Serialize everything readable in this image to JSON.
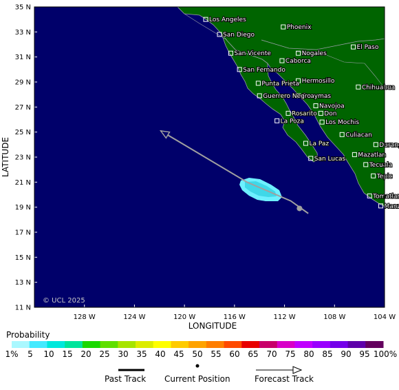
{
  "map": {
    "title": "",
    "xlabel": "LONGITUDE",
    "ylabel": "LATITUDE",
    "lon_range": [
      -132,
      -104
    ],
    "lat_range": [
      11,
      35
    ],
    "lon_ticks": [
      {
        "value": -128,
        "label": "128 W"
      },
      {
        "value": -124,
        "label": "124 W"
      },
      {
        "value": -120,
        "label": "120 W"
      },
      {
        "value": -116,
        "label": "116 W"
      },
      {
        "value": -112,
        "label": "112 W"
      },
      {
        "value": -108,
        "label": "108 W"
      },
      {
        "value": -104,
        "label": "104 W"
      }
    ],
    "lat_ticks": [
      {
        "value": 35,
        "label": "35 N"
      },
      {
        "value": 33,
        "label": "33 N"
      },
      {
        "value": 31,
        "label": "31 N"
      },
      {
        "value": 29,
        "label": "29 N"
      },
      {
        "value": 27,
        "label": "27 N"
      },
      {
        "value": 25,
        "label": "25 N"
      },
      {
        "value": 23,
        "label": "23 N"
      },
      {
        "value": 21,
        "label": "21 N"
      },
      {
        "value": 19,
        "label": "19 N"
      },
      {
        "value": 17,
        "label": "17 N"
      },
      {
        "value": 15,
        "label": "15 N"
      },
      {
        "value": 13,
        "label": "13 N"
      },
      {
        "value": 11,
        "label": "11 N"
      }
    ],
    "copyright": "© UCL 2025",
    "colors": {
      "ocean": "#00006a",
      "land": "#006400",
      "coast": "#9aa0a8",
      "track": "#a0a0a0",
      "probability_low": "#6ef0ff",
      "probability_mid": "#3fd8e8"
    },
    "cities": [
      {
        "name": "Los Angeles",
        "lon": -118.3,
        "lat": 34.0
      },
      {
        "name": "Phoenix",
        "lon": -112.1,
        "lat": 33.4
      },
      {
        "name": "San Diego",
        "lon": -117.2,
        "lat": 32.8
      },
      {
        "name": "San Vicente",
        "lon": -116.3,
        "lat": 31.3
      },
      {
        "name": "Nogales",
        "lon": -110.9,
        "lat": 31.3
      },
      {
        "name": "El Paso",
        "lon": -106.5,
        "lat": 31.8
      },
      {
        "name": "Caborca",
        "lon": -112.2,
        "lat": 30.7
      },
      {
        "name": "San Fernando",
        "lon": -115.6,
        "lat": 30.0
      },
      {
        "name": "Hermosillo",
        "lon": -110.9,
        "lat": 29.1
      },
      {
        "name": "Punta Prieta",
        "lon": -114.1,
        "lat": 28.9
      },
      {
        "name": "Chihuahua",
        "lon": -106.1,
        "lat": 28.6
      },
      {
        "name": "Guaymas",
        "lon": -110.9,
        "lat": 27.9
      },
      {
        "name": "Guerrero Negro",
        "lon": -114.0,
        "lat": 27.9
      },
      {
        "name": "Navojoa",
        "lon": -109.5,
        "lat": 27.1
      },
      {
        "name": "Rosarito",
        "lon": -111.7,
        "lat": 26.5
      },
      {
        "name": "Don",
        "lon": -109.1,
        "lat": 26.5
      },
      {
        "name": "La Poza",
        "lon": -112.6,
        "lat": 25.9
      },
      {
        "name": "Los Mochis",
        "lon": -109.0,
        "lat": 25.8
      },
      {
        "name": "Culiacan",
        "lon": -107.4,
        "lat": 24.8
      },
      {
        "name": "La Paz",
        "lon": -110.3,
        "lat": 24.1
      },
      {
        "name": "Durango",
        "lon": -104.7,
        "lat": 24.0
      },
      {
        "name": "Mazatlan",
        "lon": -106.4,
        "lat": 23.2
      },
      {
        "name": "San Lucas",
        "lon": -109.9,
        "lat": 22.9
      },
      {
        "name": "Tecuala",
        "lon": -105.5,
        "lat": 22.4
      },
      {
        "name": "Tepic",
        "lon": -104.9,
        "lat": 21.5
      },
      {
        "name": "Tomatlan",
        "lon": -105.2,
        "lat": 19.9
      },
      {
        "name": "Manzanillo",
        "lon": -104.3,
        "lat": 19.1
      }
    ],
    "forecast_track": [
      {
        "lon": -110.1,
        "lat": 18.5
      },
      {
        "lon": -111.5,
        "lat": 19.5
      },
      {
        "lon": -115.0,
        "lat": 21.0
      },
      {
        "lon": -121.9,
        "lat": 25.1
      }
    ],
    "current_position": {
      "lon": -110.8,
      "lat": 18.9
    }
  },
  "legend": {
    "title": "Probability",
    "labels": [
      "1%",
      "5",
      "10",
      "15",
      "20",
      "25",
      "30",
      "35",
      "40",
      "45",
      "50",
      "55",
      "60",
      "65",
      "70",
      "75",
      "80",
      "85",
      "90",
      "95",
      "100%"
    ],
    "colors": [
      "#aaf8ff",
      "#45eaff",
      "#00e8dc",
      "#00e49b",
      "#1ad800",
      "#5fdf00",
      "#a6e400",
      "#dcec00",
      "#ffff00",
      "#ffcb00",
      "#ffa300",
      "#ff7e00",
      "#ff4a00",
      "#e80000",
      "#c8006a",
      "#d800c8",
      "#c000ff",
      "#9a00ff",
      "#7400ea",
      "#5e00aa",
      "#64005e"
    ]
  },
  "key": {
    "past_track": "Past Track",
    "current_position": "Current Position",
    "forecast_track": "Forecast Track"
  }
}
